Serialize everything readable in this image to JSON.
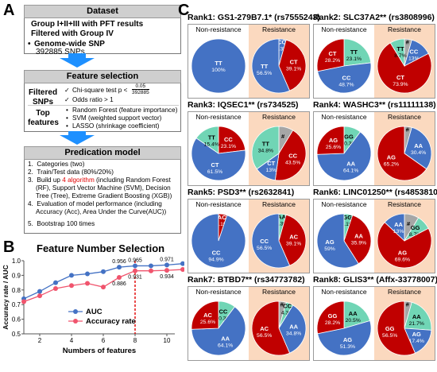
{
  "panels": {
    "a": "A",
    "b": "B",
    "c": "C"
  },
  "panel_a": {
    "dataset_header": "Dataset",
    "dataset_line1": "Group I+II+III with PFT results",
    "dataset_line2": "Filtered with Group IV",
    "dataset_line3": "Genome-wide SNP",
    "dataset_line4": "392885 SNPs",
    "feature_header": "Feature selection",
    "filtered_label": "Filtered SNPs",
    "filtered_c1": "Chi-square test p <",
    "filtered_frac_num": "0.05",
    "filtered_frac_den": "392885",
    "filtered_c2": "Odds ratio > 1",
    "top_label": "Top features",
    "top_items": [
      "Random Forest (feature importance)",
      "SVM (weighted support vector)",
      "LASSO (shrinkage coefficient)"
    ],
    "model_header": "Predication model",
    "model_items": [
      "Categories (two)",
      "Train/Test data (80%/20%)",
      "Build up 4 algorithm (including Random Forest (RF), Support Vector Machine (SVM), Decision Tree (Tree), Extreme Gradient Boosting (XGB))",
      "Evaluation of model performance (including Accuracy (Acc), Area Under the Curve(AUC))",
      "Bootstrap 100 times"
    ],
    "model_item3_pre": "Build up ",
    "model_item3_red": "4 algorithm",
    "model_item3_post": " (including Random Forest (RF), Support Vector Machine (SVM), Decision Tree (Tree), Extreme Gradient Boosting (XGB))",
    "colors": {
      "arrow": "#1e90ff",
      "highlight": "#e00000"
    }
  },
  "chart_data": {
    "type": "line",
    "title": "Feature Number Selection",
    "xlabel": "Numbers of features",
    "ylabel": "Accuracy rate / AUC",
    "xlim": [
      1,
      10.5
    ],
    "ylim": [
      0.5,
      1.0
    ],
    "xticks": [
      2,
      4,
      6,
      8,
      10
    ],
    "yticks": [
      0.5,
      0.6,
      0.7,
      0.8,
      0.9,
      1.0
    ],
    "x": [
      1,
      2,
      3,
      4,
      5,
      6,
      7,
      8,
      9,
      10,
      11
    ],
    "series": [
      {
        "name": "AUC",
        "color": "#4472c4",
        "values": [
          0.74,
          0.79,
          0.85,
          0.9,
          0.91,
          0.925,
          0.956,
          0.965,
          0.965,
          0.971,
          0.98
        ]
      },
      {
        "name": "Accuracy  rate",
        "color": "#f0546d",
        "values": [
          0.72,
          0.76,
          0.81,
          0.83,
          0.845,
          0.82,
          0.886,
          0.931,
          0.931,
          0.934,
          0.94
        ]
      }
    ],
    "annotations": [
      {
        "x": 7,
        "y": 0.956,
        "text": "0.956",
        "series": 0
      },
      {
        "x": 8,
        "y": 0.965,
        "text": "0.965",
        "series": 0
      },
      {
        "x": 10,
        "y": 0.971,
        "text": "0.971",
        "series": 0
      },
      {
        "x": 7,
        "y": 0.886,
        "text": "0.886",
        "series": 1
      },
      {
        "x": 8,
        "y": 0.931,
        "text": "0.931",
        "series": 1
      },
      {
        "x": 10,
        "y": 0.934,
        "text": "0.934",
        "series": 1
      }
    ],
    "vline": {
      "x": 8,
      "color": "#e00000"
    },
    "legend": "bottom-center",
    "grid": false
  },
  "panel_c": {
    "sub_left": "Non-resistance",
    "sub_right": "Resistance",
    "ranks": [
      {
        "title": "Rank1: GS1-279B7.1* (rs7555243)",
        "nonres": [
          {
            "label": "TT",
            "value": 100,
            "text": "100%",
            "color": "#4472c4"
          }
        ],
        "res": [
          {
            "label": "CC",
            "value": 4.3,
            "text": "4.3%",
            "color": "#4472c4"
          },
          {
            "label": "CT",
            "value": 39.1,
            "text": "39.1%",
            "color": "#c00000"
          },
          {
            "label": "TT",
            "value": 56.5,
            "text": "56.5%",
            "color": "#4472c4"
          }
        ]
      },
      {
        "title": "Rank2: SLC37A2** (rs3808996)",
        "nonres": [
          {
            "label": "TT",
            "value": 23.1,
            "text": "23.1%",
            "color": "#70d5b5"
          },
          {
            "label": "CC",
            "value": 48.7,
            "text": "48.7%",
            "color": "#4472c4"
          },
          {
            "label": "CT",
            "value": 28.2,
            "text": "28.2%",
            "color": "#c00000"
          }
        ],
        "res": [
          {
            "label": "#",
            "value": 4.4,
            "text": "",
            "color": "#a6a6a6"
          },
          {
            "label": "CC",
            "value": 13,
            "text": "13%",
            "color": "#4472c4"
          },
          {
            "label": "CT",
            "value": 73.9,
            "text": "73.9%",
            "color": "#c00000"
          },
          {
            "label": "TT",
            "value": 8.7,
            "text": "8.7%",
            "color": "#70d5b5"
          }
        ]
      },
      {
        "title": "Rank3: IQSEC1** (rs734525)",
        "nonres": [
          {
            "label": "CC",
            "value": 23.1,
            "text": "23.1%",
            "color": "#c00000"
          },
          {
            "label": "CT",
            "value": 61.5,
            "text": "61.5%",
            "color": "#4472c4"
          },
          {
            "label": "TT",
            "value": 15.4,
            "text": "15.4%",
            "color": "#70d5b5"
          }
        ],
        "res": [
          {
            "label": "#",
            "value": 8.7,
            "text": "",
            "color": "#a6a6a6"
          },
          {
            "label": "CC",
            "value": 43.5,
            "text": "43.5%",
            "color": "#c00000"
          },
          {
            "label": "CT",
            "value": 13,
            "text": "13%",
            "color": "#4472c4"
          },
          {
            "label": "TT",
            "value": 34.8,
            "text": "34.8%",
            "color": "#70d5b5"
          }
        ]
      },
      {
        "title": "Rank4: WASHC3** (rs11111138)",
        "nonres": [
          {
            "label": "GG",
            "value": 10.3,
            "text": "10.3%",
            "color": "#70d5b5"
          },
          {
            "label": "AA",
            "value": 64.1,
            "text": "64.1%",
            "color": "#4472c4"
          },
          {
            "label": "AG",
            "value": 25.6,
            "text": "25.6%",
            "color": "#c00000"
          }
        ],
        "res": [
          {
            "label": "#",
            "value": 4.4,
            "text": "",
            "color": "#a6a6a6"
          },
          {
            "label": "AA",
            "value": 30.4,
            "text": "30.4%",
            "color": "#4472c4"
          },
          {
            "label": "AG",
            "value": 65.2,
            "text": "65.2%",
            "color": "#c00000"
          }
        ]
      },
      {
        "title": "Rank5: PSD3** (rs2632841)",
        "nonres": [
          {
            "label": "AC",
            "value": 5.1,
            "text": "5.1%",
            "color": "#c00000"
          },
          {
            "label": "CC",
            "value": 94.9,
            "text": "94.9%",
            "color": "#4472c4"
          }
        ],
        "res": [
          {
            "label": "AA",
            "value": 4.3,
            "text": "4.3%",
            "color": "#70d5b5"
          },
          {
            "label": "AC",
            "value": 39.1,
            "text": "39.1%",
            "color": "#c00000"
          },
          {
            "label": "CC",
            "value": 56.5,
            "text": "56.5%",
            "color": "#4472c4"
          }
        ]
      },
      {
        "title": "Rank6: LINC01250** (rs4853810)",
        "nonres": [
          {
            "label": "GG",
            "value": 5.1,
            "text": "5.1%",
            "color": "#70d5b5"
          },
          {
            "label": "AA",
            "value": 35.9,
            "text": "35.9%",
            "color": "#c00000"
          },
          {
            "label": "AG",
            "value": 59,
            "text": "59%",
            "color": "#4472c4"
          }
        ],
        "res": [
          {
            "label": "#",
            "value": 8.7,
            "text": "",
            "color": "#a6a6a6"
          },
          {
            "label": "GG",
            "value": 8.7,
            "text": "8.7%",
            "color": "#70d5b5"
          },
          {
            "label": "AG",
            "value": 69.6,
            "text": "69.6%",
            "color": "#c00000"
          },
          {
            "label": "AA",
            "value": 13,
            "text": "13%",
            "color": "#4472c4"
          }
        ]
      },
      {
        "title": "Rank7: BTBD7** (rs34773782)",
        "nonres": [
          {
            "label": "CC",
            "value": 10.3,
            "text": "10.3%",
            "color": "#70d5b5"
          },
          {
            "label": "AA",
            "value": 64.1,
            "text": "64.1%",
            "color": "#4472c4"
          },
          {
            "label": "AC",
            "value": 25.6,
            "text": "25.6%",
            "color": "#c00000"
          }
        ],
        "res": [
          {
            "label": "#",
            "value": 4.4,
            "text": "",
            "color": "#a6a6a6"
          },
          {
            "label": "CC",
            "value": 4.3,
            "text": "4.3%",
            "color": "#70d5b5"
          },
          {
            "label": "AA",
            "value": 34.8,
            "text": "34.8%",
            "color": "#4472c4"
          },
          {
            "label": "AC",
            "value": 56.5,
            "text": "56.5%",
            "color": "#c00000"
          }
        ]
      },
      {
        "title": "Rank8: GLIS3** (Affx-33778007)",
        "nonres": [
          {
            "label": "AA",
            "value": 20.5,
            "text": "20.5%",
            "color": "#70d5b5"
          },
          {
            "label": "AG",
            "value": 51.3,
            "text": "51.3%",
            "color": "#4472c4"
          },
          {
            "label": "GG",
            "value": 28.2,
            "text": "28.2%",
            "color": "#c00000"
          }
        ],
        "res": [
          {
            "label": "#",
            "value": 4.4,
            "text": "",
            "color": "#a6a6a6"
          },
          {
            "label": "AA",
            "value": 21.7,
            "text": "21.7%",
            "color": "#70d5b5"
          },
          {
            "label": "AG",
            "value": 17.4,
            "text": "17.4%",
            "color": "#4472c4"
          },
          {
            "label": "GG",
            "value": 56.5,
            "text": "56.5%",
            "color": "#c00000"
          }
        ]
      }
    ]
  }
}
